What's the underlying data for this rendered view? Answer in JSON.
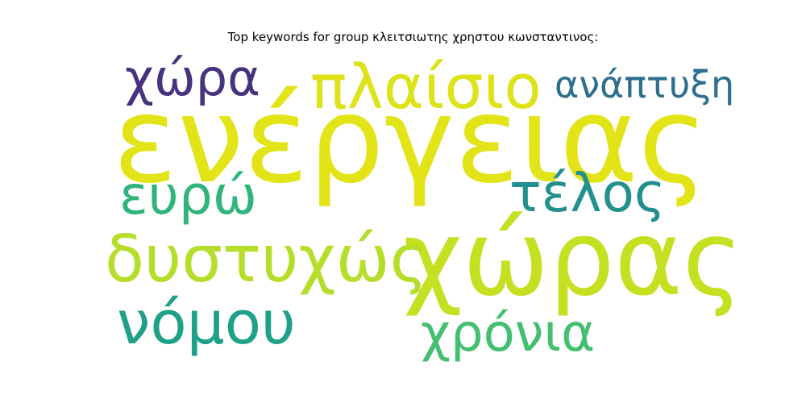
{
  "title": "Top keywords for group κλειτσιωτης χρηστου κωνσταντινος:",
  "words": [
    {
      "text": "ενέργειας",
      "color": "#e2e418"
    },
    {
      "text": "χώρας",
      "color": "#c5e021"
    },
    {
      "text": "πλαίσιο",
      "color": "#dde318"
    },
    {
      "text": "χώρα",
      "color": "#46327e"
    },
    {
      "text": "ανάπτυξη",
      "color": "#2e6f8e"
    },
    {
      "text": "ευρώ",
      "color": "#2fb47c"
    },
    {
      "text": "τέλος",
      "color": "#22908c"
    },
    {
      "text": "δυστυχώς",
      "color": "#b5de2b"
    },
    {
      "text": "νόμου",
      "color": "#1fa088"
    },
    {
      "text": "χρόνια",
      "color": "#44bf70"
    }
  ]
}
